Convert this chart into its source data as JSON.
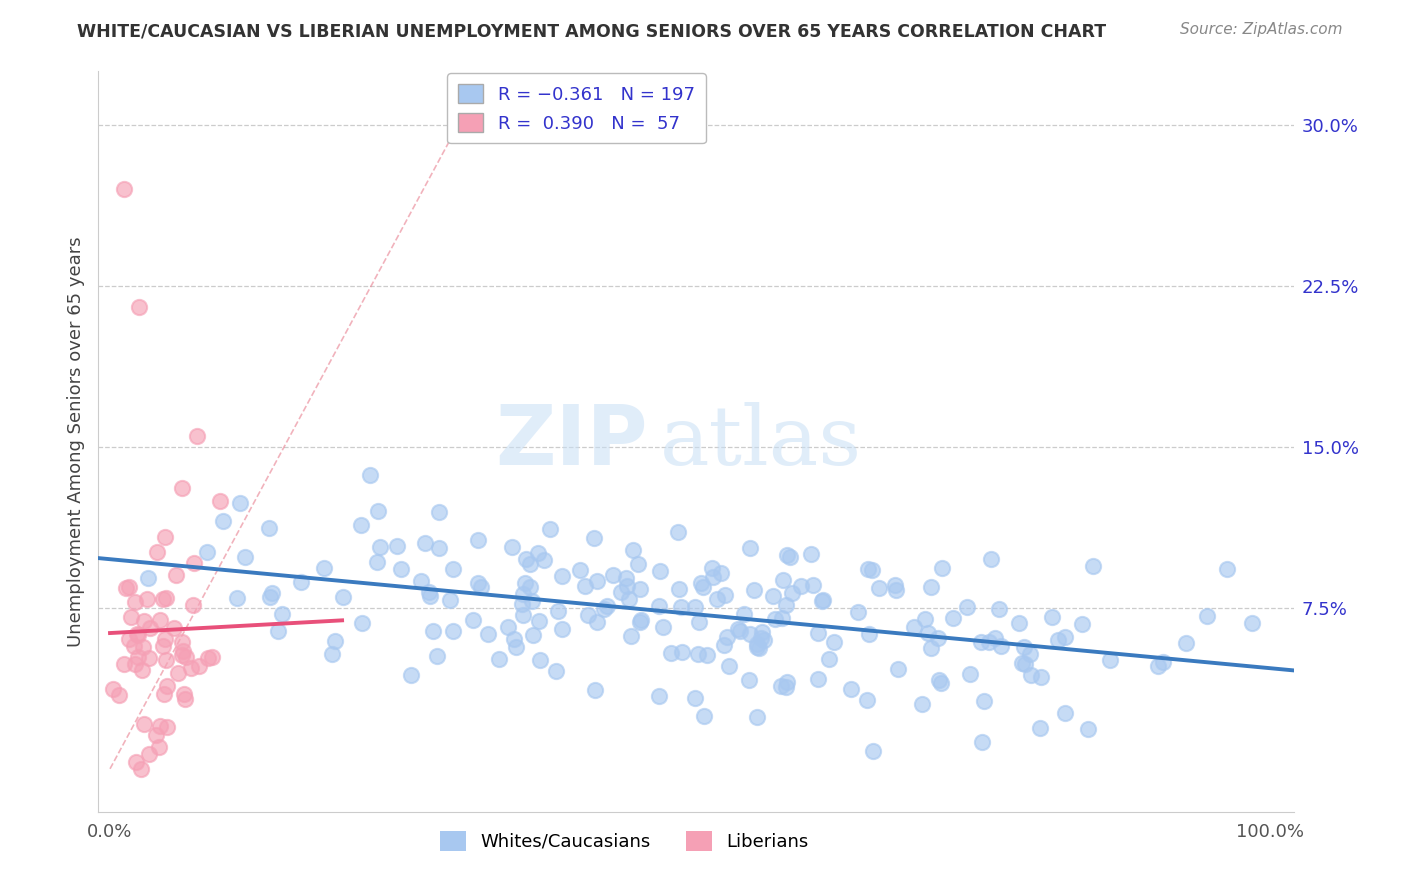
{
  "title": "WHITE/CAUCASIAN VS LIBERIAN UNEMPLOYMENT AMONG SENIORS OVER 65 YEARS CORRELATION CHART",
  "source": "Source: ZipAtlas.com",
  "ylabel": "Unemployment Among Seniors over 65 years",
  "ytick_vals": [
    0.075,
    0.15,
    0.225,
    0.3
  ],
  "ytick_labels": [
    "7.5%",
    "15.0%",
    "22.5%",
    "30.0%"
  ],
  "xlim": [
    -0.01,
    1.02
  ],
  "ylim": [
    -0.02,
    0.325
  ],
  "white_R": -0.361,
  "white_N": 197,
  "liberian_R": 0.39,
  "liberian_N": 57,
  "white_color": "#a8c8f0",
  "liberian_color": "#f5a0b5",
  "white_line_color": "#3a7abf",
  "liberian_line_color": "#e8507a",
  "legend_text_color": "#3333cc",
  "title_color": "#333333",
  "watermark_zip": "ZIP",
  "watermark_atlas": "atlas",
  "background_color": "#ffffff",
  "grid_color": "#cccccc",
  "scatter_size": 120,
  "scatter_lw": 1.5
}
